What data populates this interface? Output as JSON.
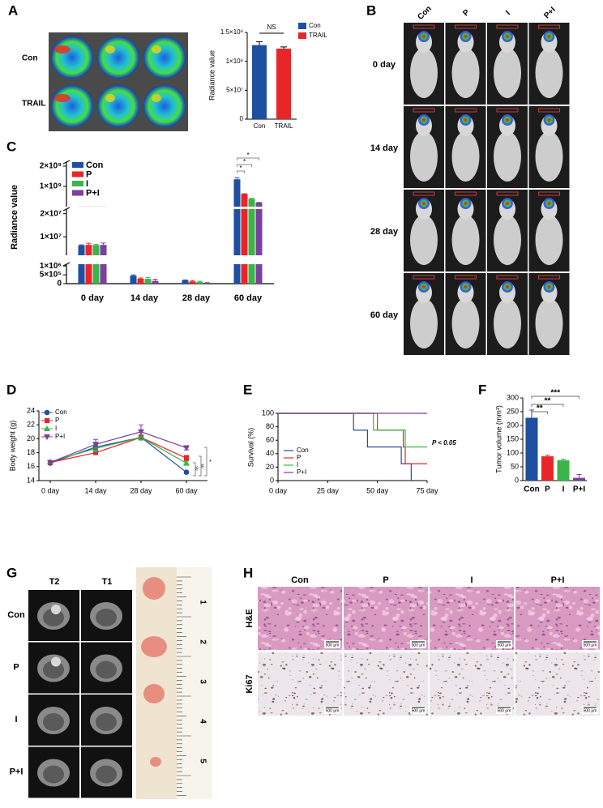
{
  "figure": {
    "panel_labels": [
      "A",
      "B",
      "C",
      "D",
      "E",
      "F",
      "G",
      "H"
    ],
    "a_image_rows": [
      "Con",
      "TRAIL"
    ],
    "b_columns": [
      "Con",
      "P",
      "I",
      "P+I"
    ],
    "b_rows": [
      "0 day",
      "14 day",
      "28 day",
      "60 day"
    ],
    "g_columns": [
      "T2",
      "T1"
    ],
    "g_rows": [
      "Con",
      "P",
      "I",
      "P+I"
    ],
    "g_ruler": [
      "1",
      "2",
      "3",
      "4",
      "5"
    ],
    "h_columns": [
      "Con",
      "P",
      "I",
      "P+I"
    ],
    "h_rows": [
      "H&E",
      "Ki67"
    ],
    "h_scale_bar": "500 μm"
  },
  "chart_data": [
    {
      "type": "bar",
      "categories": [
        "Con",
        "TRAIL"
      ],
      "values": [
        128000000,
        122000000
      ],
      "errors": [
        6000000,
        3000000
      ],
      "colors": [
        "#1f4fa0",
        "#e8262a"
      ],
      "ylabel": "Radiance value",
      "ylim": [
        0,
        150000000
      ],
      "yticks": [
        0,
        {
          "value": 50000000,
          "label": "5×10⁷"
        },
        {
          "value": 100000000,
          "label": "1×10⁸"
        },
        {
          "value": 150000000,
          "label": "1.5×10⁸"
        }
      ],
      "annotations": [
        "NS"
      ],
      "legend": "right"
    },
    {
      "type": "broken-bar",
      "categories": [
        "0 day",
        "14 day",
        "28 day",
        "60 day"
      ],
      "ylabel": "Radiance value",
      "series": [
        {
          "name": "Con",
          "color": "#1f4fa0",
          "values": [
            6300000,
            450000,
            190000,
            1350000000
          ],
          "errors": [
            200000,
            40000,
            20000,
            80000000
          ]
        },
        {
          "name": "P",
          "color": "#e8262a",
          "values": [
            6500000,
            280000,
            130000,
            620000000
          ],
          "errors": [
            700000,
            40000,
            50000,
            20000000
          ]
        },
        {
          "name": "I",
          "color": "#3cb44b",
          "values": [
            6400000,
            270000,
            100000,
            390000000
          ],
          "errors": [
            300000,
            80000,
            40000,
            20000000
          ]
        },
        {
          "name": "P+I",
          "color": "#7b3f9e",
          "values": [
            6500000,
            160000,
            40000,
            200000000
          ],
          "errors": [
            800000,
            90000,
            20000,
            10000000
          ]
        }
      ],
      "y_segments": [
        {
          "ylim": [
            0,
            1100000
          ],
          "yticks": [
            0,
            {
              "value": 500000,
              "label": "5×10⁵"
            },
            {
              "value": 1000000,
              "label": "1×10⁶"
            }
          ]
        },
        {
          "ylim": [
            2000000,
            22000000
          ],
          "yticks": [
            {
              "value": 10000000,
              "label": "1×10⁷"
            },
            {
              "value": 20000000,
              "label": "2×10⁷"
            }
          ]
        },
        {
          "ylim": [
            0,
            2200000000
          ],
          "yticks": [
            {
              "value": 1000000000,
              "label": "1×10⁹"
            },
            {
              "value": 2000000000,
              "label": "2×10⁹"
            }
          ]
        }
      ],
      "annotations": [
        "*",
        "*",
        "*"
      ],
      "legend": "top-left"
    },
    {
      "type": "line",
      "categories": [
        "0 day",
        "14 day",
        "28 day",
        "60 day"
      ],
      "ylabel": "Body weight (g)",
      "series": [
        {
          "name": "Con",
          "color": "#1f4fa0",
          "marker": "circle",
          "values": [
            16.5,
            18.8,
            20.2,
            15.2
          ],
          "errors": [
            0.2,
            0.3,
            0.3,
            0.2
          ]
        },
        {
          "name": "P",
          "color": "#e8262a",
          "marker": "square",
          "values": [
            16.6,
            18.0,
            20.2,
            17.2
          ],
          "errors": [
            0.2,
            0.2,
            0.3,
            0.4
          ]
        },
        {
          "name": "I",
          "color": "#3cb44b",
          "marker": "triangle",
          "values": [
            16.7,
            18.6,
            20.2,
            16.5
          ],
          "errors": [
            0.2,
            0.4,
            0.4,
            0.3
          ]
        },
        {
          "name": "P+I",
          "color": "#7b3f9e",
          "marker": "triangle-down",
          "values": [
            16.6,
            19.2,
            21.0,
            18.7
          ],
          "errors": [
            0.2,
            0.7,
            1.0,
            0.3
          ]
        }
      ],
      "ylim": [
        14,
        24
      ],
      "yticks": [
        14,
        16,
        18,
        20,
        22,
        24
      ],
      "annotations": [
        "ns",
        "ns",
        "*"
      ],
      "legend": "top-left"
    },
    {
      "type": "step",
      "ylabel": "Survival (%)",
      "series": [
        {
          "name": "Con",
          "color": "#1f4fa0",
          "x": [
            0,
            38,
            38,
            45,
            45,
            62,
            62,
            67,
            67
          ],
          "values": [
            100,
            100,
            75,
            75,
            50,
            50,
            25,
            25,
            0
          ]
        },
        {
          "name": "P",
          "color": "#e8262a",
          "x": [
            0,
            50,
            50,
            63,
            63,
            64,
            64,
            75
          ],
          "values": [
            100,
            100,
            75,
            75,
            50,
            50,
            25,
            25
          ]
        },
        {
          "name": "I",
          "color": "#3cb44b",
          "x": [
            0,
            48,
            48,
            64,
            64,
            75
          ],
          "values": [
            100,
            100,
            75,
            75,
            50,
            50
          ]
        },
        {
          "name": "P+I",
          "color": "#7b3f9e",
          "x": [
            0,
            75
          ],
          "values": [
            100,
            100
          ]
        }
      ],
      "xlim": [
        0,
        75
      ],
      "xticks": [
        {
          "value": 0,
          "label": "0 day"
        },
        {
          "value": 25,
          "label": "25 day"
        },
        {
          "value": 50,
          "label": "50 day"
        },
        {
          "value": 75,
          "label": "75 day"
        }
      ],
      "ylim": [
        0,
        100
      ],
      "yticks": [
        0,
        20,
        40,
        60,
        80,
        100
      ],
      "annotations": [
        "P < 0.05"
      ],
      "legend": "bottom-left"
    },
    {
      "type": "bar",
      "categories": [
        "Con",
        "P",
        "I",
        "P+I"
      ],
      "values": [
        228,
        88,
        74,
        10
      ],
      "errors": [
        28,
        4,
        4,
        12
      ],
      "colors": [
        "#1f4fa0",
        "#e8262a",
        "#3cb44b",
        "#7b3f9e"
      ],
      "ylabel": "Tumor volume (mm³)",
      "ylim": [
        0,
        300
      ],
      "yticks": [
        0,
        50,
        100,
        150,
        200,
        250,
        300
      ],
      "annotations": [
        "**",
        "**",
        "***"
      ]
    }
  ]
}
